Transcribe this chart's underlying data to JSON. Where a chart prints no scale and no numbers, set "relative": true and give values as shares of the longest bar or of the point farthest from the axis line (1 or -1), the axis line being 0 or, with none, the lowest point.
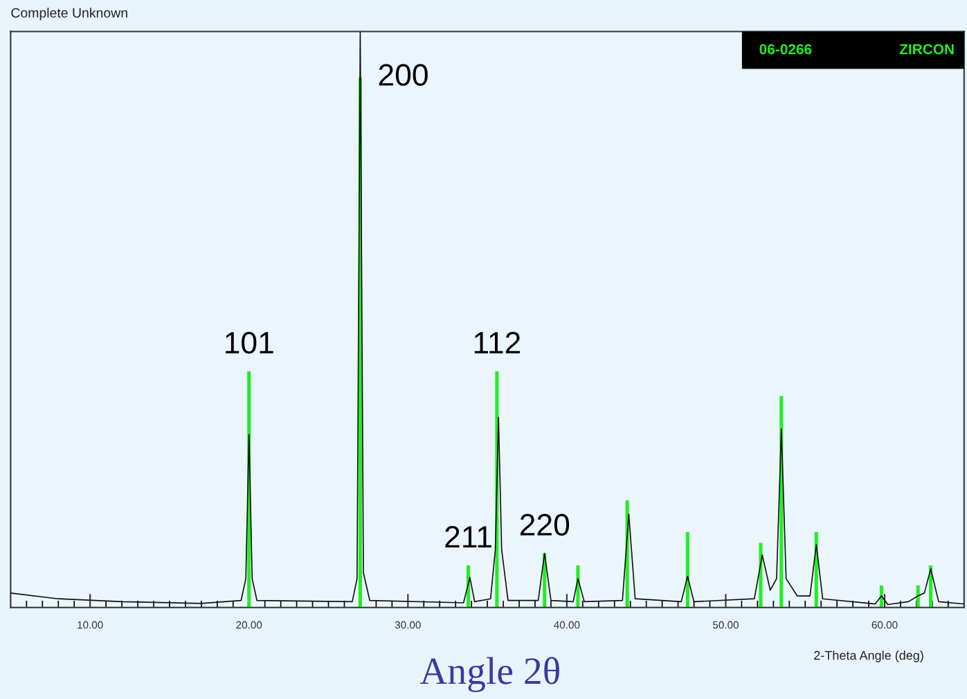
{
  "chart_data": {
    "type": "line",
    "title": "Complete Unknown",
    "xlabel": "2-Theta Angle (deg)",
    "relative": true,
    "xlim": [
      5,
      65
    ],
    "xticks": [
      {
        "value": 6,
        "label": null
      },
      {
        "value": 7,
        "label": null
      },
      {
        "value": 8,
        "label": null
      },
      {
        "value": 9,
        "label": null
      },
      {
        "value": 10,
        "label": "10.00"
      },
      {
        "value": 11,
        "label": null
      },
      {
        "value": 12,
        "label": null
      },
      {
        "value": 13,
        "label": null
      },
      {
        "value": 14,
        "label": null
      },
      {
        "value": 15,
        "label": null
      },
      {
        "value": 16,
        "label": null
      },
      {
        "value": 17,
        "label": null
      },
      {
        "value": 18,
        "label": null
      },
      {
        "value": 19,
        "label": null
      },
      {
        "value": 20,
        "label": "20.00"
      },
      {
        "value": 21,
        "label": null
      },
      {
        "value": 22,
        "label": null
      },
      {
        "value": 23,
        "label": null
      },
      {
        "value": 24,
        "label": null
      },
      {
        "value": 25,
        "label": null
      },
      {
        "value": 26,
        "label": null
      },
      {
        "value": 27,
        "label": null
      },
      {
        "value": 28,
        "label": null
      },
      {
        "value": 29,
        "label": null
      },
      {
        "value": 30,
        "label": "30.00"
      },
      {
        "value": 31,
        "label": null
      },
      {
        "value": 32,
        "label": null
      },
      {
        "value": 33,
        "label": null
      },
      {
        "value": 34,
        "label": null
      },
      {
        "value": 35,
        "label": null
      },
      {
        "value": 36,
        "label": null
      },
      {
        "value": 37,
        "label": null
      },
      {
        "value": 38,
        "label": null
      },
      {
        "value": 39,
        "label": null
      },
      {
        "value": 40,
        "label": "40.00"
      },
      {
        "value": 41,
        "label": null
      },
      {
        "value": 42,
        "label": null
      },
      {
        "value": 43,
        "label": null
      },
      {
        "value": 44,
        "label": null
      },
      {
        "value": 45,
        "label": null
      },
      {
        "value": 46,
        "label": null
      },
      {
        "value": 47,
        "label": null
      },
      {
        "value": 48,
        "label": null
      },
      {
        "value": 49,
        "label": null
      },
      {
        "value": 50,
        "label": "50.00"
      },
      {
        "value": 51,
        "label": null
      },
      {
        "value": 52,
        "label": null
      },
      {
        "value": 53,
        "label": null
      },
      {
        "value": 54,
        "label": null
      },
      {
        "value": 55,
        "label": null
      },
      {
        "value": 56,
        "label": null
      },
      {
        "value": 57,
        "label": null
      },
      {
        "value": 58,
        "label": null
      },
      {
        "value": 59,
        "label": null
      },
      {
        "value": 60,
        "label": "60.00"
      },
      {
        "value": 61,
        "label": null
      },
      {
        "value": 62,
        "label": null
      },
      {
        "value": 63,
        "label": null
      },
      {
        "value": 64,
        "label": null
      }
    ],
    "series": [
      {
        "type": "bar",
        "color": "#22ee22",
        "x": [
          20.0,
          27.0,
          33.8,
          35.6,
          38.6,
          40.7,
          43.8,
          47.6,
          52.2,
          53.5,
          55.7,
          59.8,
          62.1,
          62.9
        ],
        "values": [
          0.41,
          0.92,
          0.073,
          0.41,
          0.094,
          0.073,
          0.186,
          0.131,
          0.112,
          0.367,
          0.131,
          0.038,
          0.038,
          0.073
        ]
      },
      {
        "color": "#111111",
        "x": [
          5,
          8,
          12,
          17,
          19.5,
          19.8,
          20.0,
          20.2,
          20.5,
          26.5,
          26.8,
          27.0,
          27.2,
          27.6,
          33.5,
          33.9,
          34.2,
          35.2,
          35.5,
          35.7,
          35.9,
          36.3,
          38.2,
          38.6,
          39.0,
          40.4,
          40.7,
          41.1,
          43.5,
          43.9,
          44.3,
          47.2,
          47.6,
          48.0,
          51.8,
          52.3,
          52.8,
          53.2,
          53.5,
          53.8,
          54.5,
          55.3,
          55.7,
          56.1,
          59.4,
          59.8,
          60.2,
          61.5,
          62.1,
          62.5,
          62.9,
          63.4,
          65
        ],
        "values": [
          0.025,
          0.015,
          0.01,
          0.007,
          0.012,
          0.05,
          0.3,
          0.05,
          0.012,
          0.01,
          0.05,
          1.0,
          0.06,
          0.012,
          0.008,
          0.052,
          0.01,
          0.015,
          0.1,
          0.33,
          0.1,
          0.012,
          0.012,
          0.094,
          0.012,
          0.01,
          0.05,
          0.01,
          0.012,
          0.162,
          0.015,
          0.01,
          0.054,
          0.01,
          0.015,
          0.091,
          0.03,
          0.05,
          0.31,
          0.05,
          0.02,
          0.02,
          0.109,
          0.015,
          0.006,
          0.02,
          0.005,
          0.01,
          0.02,
          0.025,
          0.067,
          0.01,
          0.006
        ]
      }
    ],
    "annotations": [
      "06-0266",
      "ZIRCON",
      "Angle 2θ",
      {
        "text": "101",
        "x": 20.0,
        "y": 0.41
      },
      {
        "text": "200",
        "x": 27.0,
        "y": 0.92
      },
      {
        "text": "211",
        "x": 33.8,
        "y": 0.073
      },
      {
        "text": "112",
        "x": 35.6,
        "y": 0.41
      },
      {
        "text": "220",
        "x": 38.6,
        "y": 0.094
      }
    ]
  }
}
